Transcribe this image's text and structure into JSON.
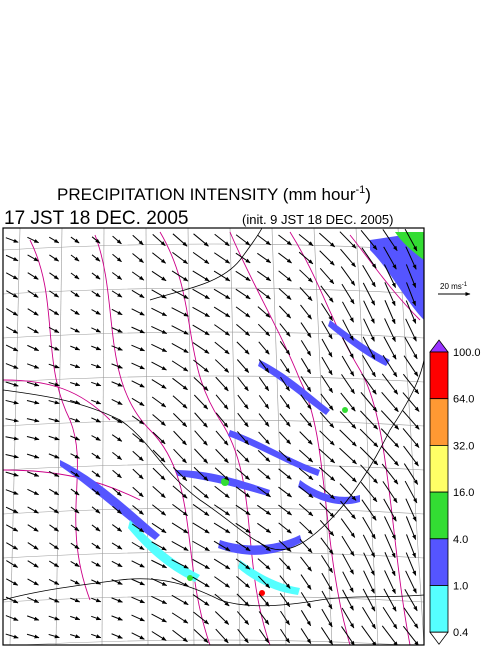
{
  "header": {
    "title": "PRECIPITATION INTENSITY (mm hour",
    "title_exponent": "-1",
    "title_close": ")",
    "valid_time": "17 JST 18 DEC. 2005",
    "init_time": "(init. 9 JST 18 DEC. 2005)"
  },
  "reference_vector": {
    "label": "20 ms",
    "exponent": "-1"
  },
  "colorbar": {
    "labels": [
      "100.0",
      "64.0",
      "32.0",
      "16.0",
      "4.0",
      "1.0",
      "0.4"
    ],
    "colors": [
      "#ff0000",
      "#ff9933",
      "#ffff66",
      "#33dd33",
      "#5555ff",
      "#55ffff"
    ],
    "over_color": "#9933ff",
    "under_color": "#ffffff"
  }
}
